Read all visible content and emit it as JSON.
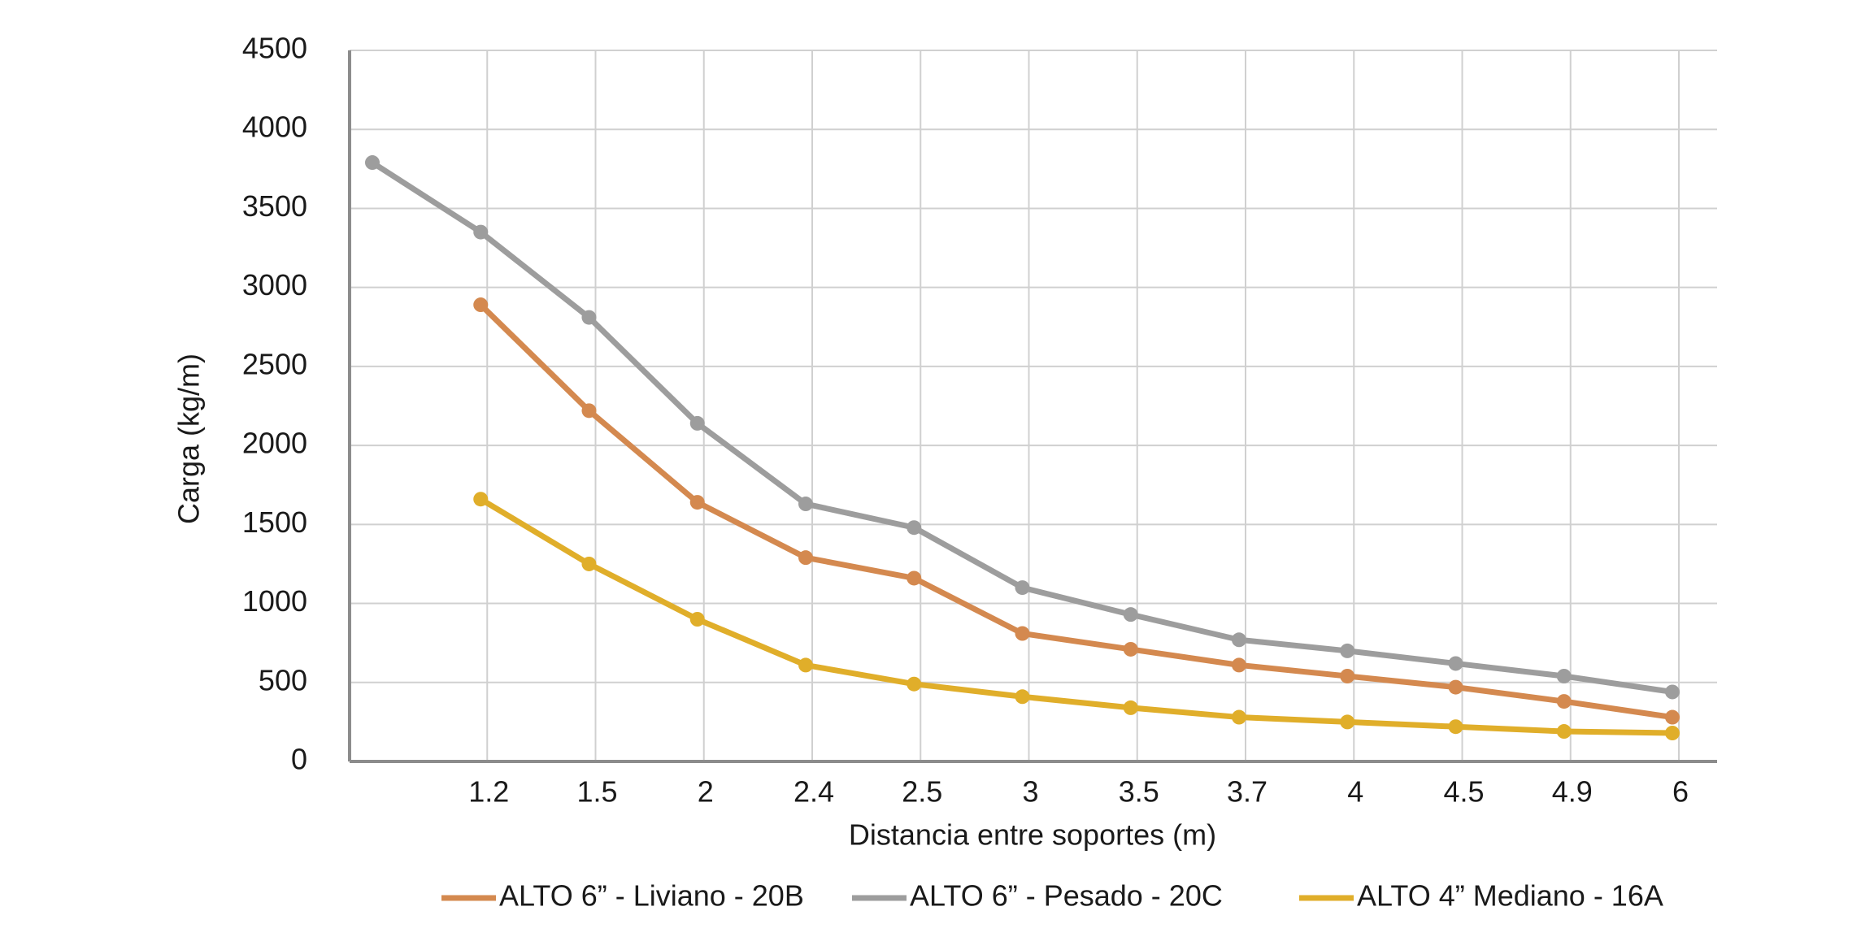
{
  "chart_data": {
    "type": "line",
    "xlabel": "Distancia entre soportes (m)",
    "ylabel": "Carga (kg/m)",
    "categories": [
      null,
      "1.2",
      "1.5",
      "2",
      "2.4",
      "2.5",
      "3",
      "3.5",
      "3.7",
      "4",
      "4.5",
      "4.9",
      "6"
    ],
    "series": [
      {
        "name": "ALTO 6” - Liviano - 20B",
        "color": "#d4894f",
        "values": [
          null,
          2890,
          2220,
          1640,
          1290,
          1160,
          810,
          710,
          610,
          540,
          470,
          380,
          280
        ]
      },
      {
        "name": "ALTO 6” - Pesado  - 20C",
        "color": "#9d9d9d",
        "values": [
          3790,
          3350,
          2810,
          2140,
          1630,
          1480,
          1100,
          930,
          770,
          700,
          620,
          540,
          440
        ]
      },
      {
        "name": "ALTO 4” Mediano - 16A",
        "color": "#e0ae2a",
        "values": [
          null,
          1660,
          1250,
          900,
          610,
          490,
          410,
          340,
          280,
          250,
          220,
          190,
          180
        ]
      }
    ],
    "ylim": [
      0,
      4500
    ],
    "yticks": [
      0,
      500,
      1000,
      1500,
      2000,
      2500,
      3000,
      3500,
      4000,
      4500
    ],
    "grid": true,
    "legend": "bottom"
  }
}
